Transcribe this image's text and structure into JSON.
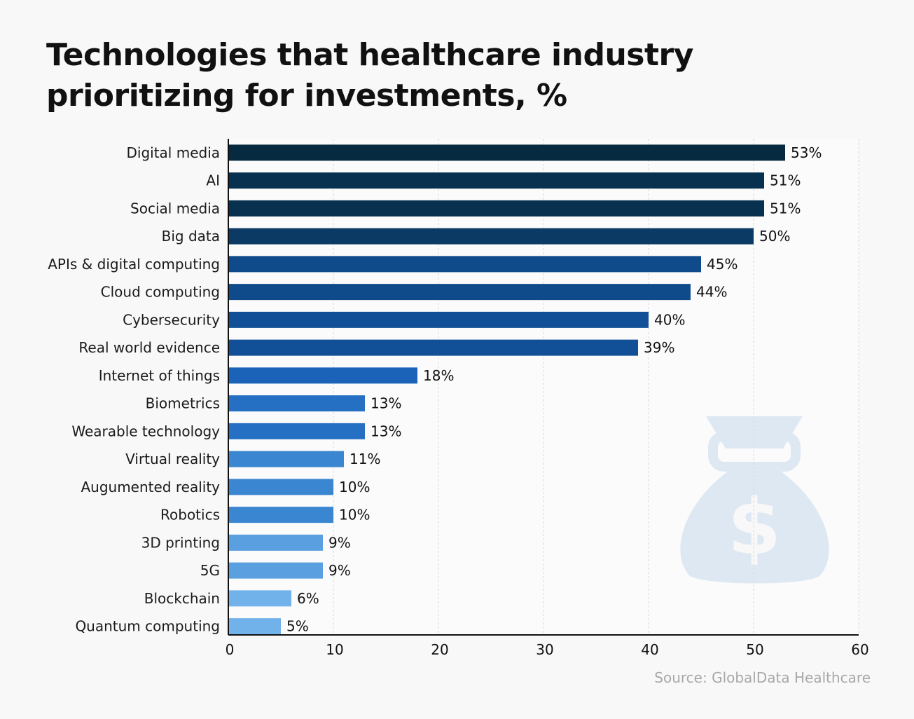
{
  "chart_data": {
    "type": "bar",
    "orientation": "horizontal",
    "title": "Technologies that healthcare industry prioritizing for investments, %",
    "categories": [
      "Digital media",
      "AI",
      "Social media",
      "Big data",
      "APIs & digital computing",
      "Cloud computing",
      "Cybersecurity",
      "Real world evidence",
      "Internet of things",
      "Biometrics",
      "Wearable technology",
      "Virtual reality",
      "Augumented reality",
      "Robotics",
      "3D printing",
      "5G",
      "Blockchain",
      "Quantum computing"
    ],
    "values": [
      53,
      51,
      51,
      50,
      45,
      44,
      40,
      39,
      18,
      13,
      13,
      11,
      10,
      10,
      9,
      9,
      6,
      5
    ],
    "value_labels": [
      "53%",
      "51%",
      "51%",
      "50%",
      "45%",
      "44%",
      "40%",
      "39%",
      "18%",
      "13%",
      "13%",
      "11%",
      "10%",
      "10%",
      "9%",
      "9%",
      "6%",
      "5%"
    ],
    "colors": [
      "#062a40",
      "#08304f",
      "#08304f",
      "#0b3a64",
      "#0f4a8a",
      "#0f4a8a",
      "#114f96",
      "#114f96",
      "#1a63b8",
      "#2670c4",
      "#2670c4",
      "#3a86d0",
      "#3a86d0",
      "#3a86d0",
      "#5aa0e0",
      "#5aa0e0",
      "#72b2ea",
      "#72b2ea"
    ],
    "xlim": [
      0,
      60
    ],
    "xticks": [
      "0",
      "10",
      "20",
      "30",
      "40",
      "50",
      "60"
    ],
    "grid": true,
    "xlabel": "",
    "ylabel": "",
    "source": "Source: GlobalData Healthcare"
  },
  "decoration": {
    "icon": "money-bag-dollar-icon",
    "color": "#dde8f3"
  }
}
